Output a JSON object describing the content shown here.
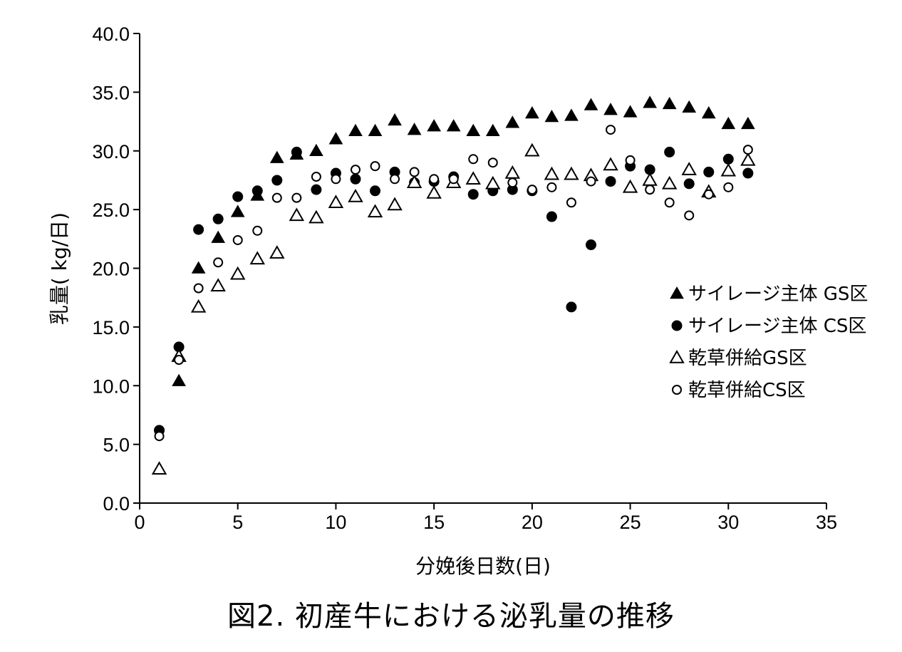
{
  "chart_data": {
    "type": "scatter",
    "title": "図2. 初産牛における泌乳量の推移",
    "xlabel": "分娩後日数(日)",
    "ylabel": "乳量( kg/日)",
    "xlim": [
      0,
      35
    ],
    "ylim": [
      0,
      40
    ],
    "xticks": [
      0,
      5,
      10,
      15,
      20,
      25,
      30,
      35
    ],
    "yticks": [
      0,
      5,
      10,
      15,
      20,
      25,
      30,
      35,
      40
    ],
    "xtick_labels": [
      "0",
      "5",
      "10",
      "15",
      "20",
      "25",
      "30",
      "35"
    ],
    "ytick_labels": [
      "0.0",
      "5.0",
      "10.0",
      "15.0",
      "20.0",
      "25.0",
      "30.0",
      "35.0",
      "40.0"
    ],
    "grid": false,
    "legend_position": "right",
    "x": [
      1,
      2,
      3,
      4,
      5,
      6,
      7,
      8,
      9,
      10,
      11,
      12,
      13,
      14,
      15,
      16,
      17,
      18,
      19,
      20,
      21,
      22,
      23,
      24,
      25,
      26,
      27,
      28,
      29,
      30,
      31
    ],
    "series": [
      {
        "name": "サイレージ主体 GS区",
        "marker": "triangle-filled",
        "values": [
          2.9,
          10.4,
          20.0,
          22.6,
          24.8,
          26.2,
          29.4,
          29.7,
          30.0,
          31.0,
          31.7,
          31.7,
          32.6,
          31.8,
          32.1,
          32.1,
          31.7,
          31.7,
          32.4,
          33.2,
          32.9,
          33.0,
          33.9,
          33.5,
          33.3,
          34.1,
          34.0,
          33.7,
          33.2,
          32.3,
          32.3
        ]
      },
      {
        "name": "サイレージ主体 CS区",
        "marker": "circle-filled",
        "values": [
          6.2,
          13.3,
          23.3,
          24.2,
          26.1,
          26.6,
          27.5,
          29.9,
          26.7,
          28.1,
          27.6,
          26.6,
          28.2,
          27.3,
          27.4,
          27.8,
          26.3,
          26.6,
          26.7,
          26.6,
          24.4,
          16.7,
          22.0,
          27.4,
          28.7,
          28.4,
          29.9,
          27.2,
          28.2,
          29.3,
          28.1
        ]
      },
      {
        "name": "乾草併給GS区",
        "marker": "triangle-open",
        "values": [
          2.9,
          12.5,
          16.7,
          18.5,
          19.5,
          20.8,
          21.3,
          24.5,
          24.3,
          25.6,
          26.1,
          24.8,
          25.4,
          27.3,
          26.4,
          27.3,
          27.6,
          27.2,
          28.1,
          30.0,
          28.0,
          28.0,
          27.9,
          28.8,
          26.9,
          27.5,
          27.2,
          28.4,
          26.5,
          28.3,
          29.2
        ]
      },
      {
        "name": "乾草併給CS区",
        "marker": "circle-open",
        "values": [
          5.7,
          12.2,
          18.3,
          20.5,
          22.4,
          23.2,
          26.0,
          26.0,
          27.8,
          27.6,
          28.4,
          28.7,
          27.6,
          28.2,
          27.6,
          27.6,
          29.3,
          29.0,
          27.3,
          26.7,
          26.9,
          25.6,
          27.4,
          31.8,
          29.2,
          26.7,
          25.6,
          24.5,
          26.3,
          26.9,
          30.1
        ]
      }
    ]
  }
}
